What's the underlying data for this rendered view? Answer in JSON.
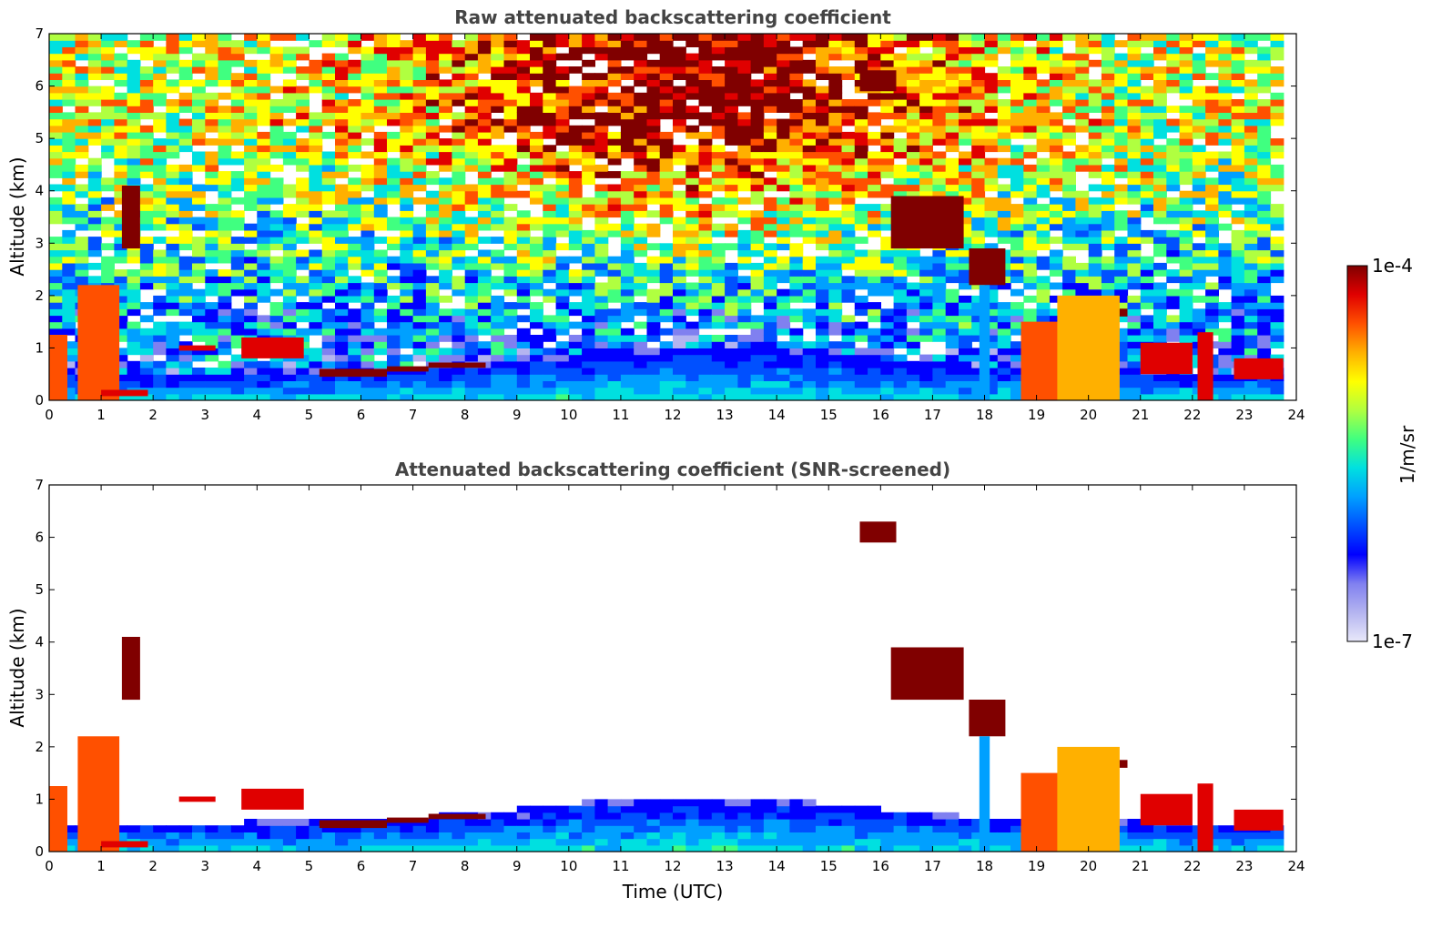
{
  "chart_data": [
    {
      "type": "heatmap",
      "title": "Raw attenuated backscattering coefficient",
      "xlabel": "",
      "ylabel": "Altitude (km)",
      "xlim": [
        0,
        24
      ],
      "ylim": [
        0,
        7
      ],
      "xticks": [
        "0",
        "1",
        "2",
        "3",
        "4",
        "5",
        "6",
        "7",
        "8",
        "9",
        "10",
        "11",
        "12",
        "13",
        "14",
        "15",
        "16",
        "17",
        "18",
        "19",
        "20",
        "21",
        "22",
        "23",
        "24"
      ],
      "yticks": [
        "0",
        "1",
        "2",
        "3",
        "4",
        "5",
        "6",
        "7"
      ],
      "screened": false,
      "features": [
        {
          "t0": 0.0,
          "t1": 0.35,
          "z0": 0.0,
          "z1": 1.25,
          "level": 0.85
        },
        {
          "t0": 0.55,
          "t1": 1.35,
          "z0": 0.0,
          "z1": 2.2,
          "level": 0.82
        },
        {
          "t0": 1.4,
          "t1": 1.75,
          "z0": 2.9,
          "z1": 4.1,
          "level": 0.95
        },
        {
          "t0": 1.0,
          "t1": 1.9,
          "z0": 0.08,
          "z1": 0.2,
          "level": 0.9
        },
        {
          "t0": 2.5,
          "t1": 3.2,
          "z0": 0.95,
          "z1": 1.05,
          "level": 0.9
        },
        {
          "t0": 3.7,
          "t1": 4.9,
          "z0": 0.8,
          "z1": 1.2,
          "level": 0.9
        },
        {
          "t0": 5.2,
          "t1": 6.5,
          "z0": 0.45,
          "z1": 0.6,
          "level": 0.98
        },
        {
          "t0": 6.5,
          "t1": 7.3,
          "z0": 0.55,
          "z1": 0.65,
          "level": 0.97
        },
        {
          "t0": 7.3,
          "t1": 8.4,
          "z0": 0.62,
          "z1": 0.72,
          "level": 0.97
        },
        {
          "t0": 15.6,
          "t1": 16.3,
          "z0": 5.9,
          "z1": 6.3,
          "level": 0.95
        },
        {
          "t0": 16.2,
          "t1": 17.6,
          "z0": 2.9,
          "z1": 3.9,
          "level": 0.97
        },
        {
          "t0": 17.7,
          "t1": 18.4,
          "z0": 2.2,
          "z1": 2.9,
          "level": 0.95
        },
        {
          "t0": 17.9,
          "t1": 18.1,
          "z0": 0.0,
          "z1": 2.2,
          "level": 0.42
        },
        {
          "t0": 18.7,
          "t1": 19.4,
          "z0": 0.0,
          "z1": 1.5,
          "level": 0.8
        },
        {
          "t0": 19.4,
          "t1": 20.6,
          "z0": 0.0,
          "z1": 2.0,
          "level": 0.75
        },
        {
          "t0": 20.6,
          "t1": 20.75,
          "z0": 1.6,
          "z1": 1.75,
          "level": 0.95
        },
        {
          "t0": 21.0,
          "t1": 22.0,
          "z0": 0.5,
          "z1": 1.1,
          "level": 0.92
        },
        {
          "t0": 22.1,
          "t1": 22.4,
          "z0": 0.0,
          "z1": 1.3,
          "level": 0.9
        },
        {
          "t0": 22.8,
          "t1": 23.75,
          "z0": 0.4,
          "z1": 0.8,
          "level": 0.9
        }
      ]
    },
    {
      "type": "heatmap",
      "title": "Attenuated backscattering coefficient (SNR-screened)",
      "xlabel": "Time (UTC)",
      "ylabel": "Altitude (km)",
      "xlim": [
        0,
        24
      ],
      "ylim": [
        0,
        7
      ],
      "xticks": [
        "0",
        "1",
        "2",
        "3",
        "4",
        "5",
        "6",
        "7",
        "8",
        "9",
        "10",
        "11",
        "12",
        "13",
        "14",
        "15",
        "16",
        "17",
        "18",
        "19",
        "20",
        "21",
        "22",
        "23",
        "24"
      ],
      "yticks": [
        "0",
        "1",
        "2",
        "3",
        "4",
        "5",
        "6",
        "7"
      ],
      "screened": true,
      "features": [
        {
          "t0": 0.0,
          "t1": 0.35,
          "z0": 0.0,
          "z1": 1.25,
          "level": 0.85
        },
        {
          "t0": 0.55,
          "t1": 1.35,
          "z0": 0.0,
          "z1": 2.2,
          "level": 0.82
        },
        {
          "t0": 1.4,
          "t1": 1.75,
          "z0": 2.9,
          "z1": 4.1,
          "level": 0.95
        },
        {
          "t0": 1.0,
          "t1": 1.9,
          "z0": 0.08,
          "z1": 0.2,
          "level": 0.9
        },
        {
          "t0": 2.5,
          "t1": 3.2,
          "z0": 0.95,
          "z1": 1.05,
          "level": 0.9
        },
        {
          "t0": 3.7,
          "t1": 4.9,
          "z0": 0.8,
          "z1": 1.2,
          "level": 0.9
        },
        {
          "t0": 5.2,
          "t1": 6.5,
          "z0": 0.45,
          "z1": 0.6,
          "level": 0.98
        },
        {
          "t0": 6.5,
          "t1": 7.3,
          "z0": 0.55,
          "z1": 0.65,
          "level": 0.97
        },
        {
          "t0": 7.3,
          "t1": 8.4,
          "z0": 0.62,
          "z1": 0.72,
          "level": 0.97
        },
        {
          "t0": 15.6,
          "t1": 16.3,
          "z0": 5.9,
          "z1": 6.3,
          "level": 0.95
        },
        {
          "t0": 16.2,
          "t1": 17.6,
          "z0": 2.9,
          "z1": 3.9,
          "level": 0.97
        },
        {
          "t0": 17.7,
          "t1": 18.4,
          "z0": 2.2,
          "z1": 2.9,
          "level": 0.95
        },
        {
          "t0": 17.9,
          "t1": 18.1,
          "z0": 0.0,
          "z1": 2.2,
          "level": 0.42
        },
        {
          "t0": 18.7,
          "t1": 19.4,
          "z0": 0.0,
          "z1": 1.5,
          "level": 0.8
        },
        {
          "t0": 19.4,
          "t1": 20.6,
          "z0": 0.0,
          "z1": 2.0,
          "level": 0.75
        },
        {
          "t0": 20.6,
          "t1": 20.75,
          "z0": 1.6,
          "z1": 1.75,
          "level": 0.95
        },
        {
          "t0": 21.0,
          "t1": 22.0,
          "z0": 0.5,
          "z1": 1.1,
          "level": 0.92
        },
        {
          "t0": 22.1,
          "t1": 22.4,
          "z0": 0.0,
          "z1": 1.3,
          "level": 0.9
        },
        {
          "t0": 22.8,
          "t1": 23.75,
          "z0": 0.4,
          "z1": 0.8,
          "level": 0.9
        }
      ]
    }
  ],
  "colorbar": {
    "label": "1/m/sr",
    "max_label": "1e-4",
    "min_label": "1e-7",
    "colors": [
      "#e8e8fa",
      "#b4b4f0",
      "#8080f0",
      "#0000ff",
      "#0050ff",
      "#00a0ff",
      "#00e0e0",
      "#40ff80",
      "#b0ff40",
      "#ffff00",
      "#ffb000",
      "#ff5000",
      "#e00000",
      "#800000"
    ]
  }
}
